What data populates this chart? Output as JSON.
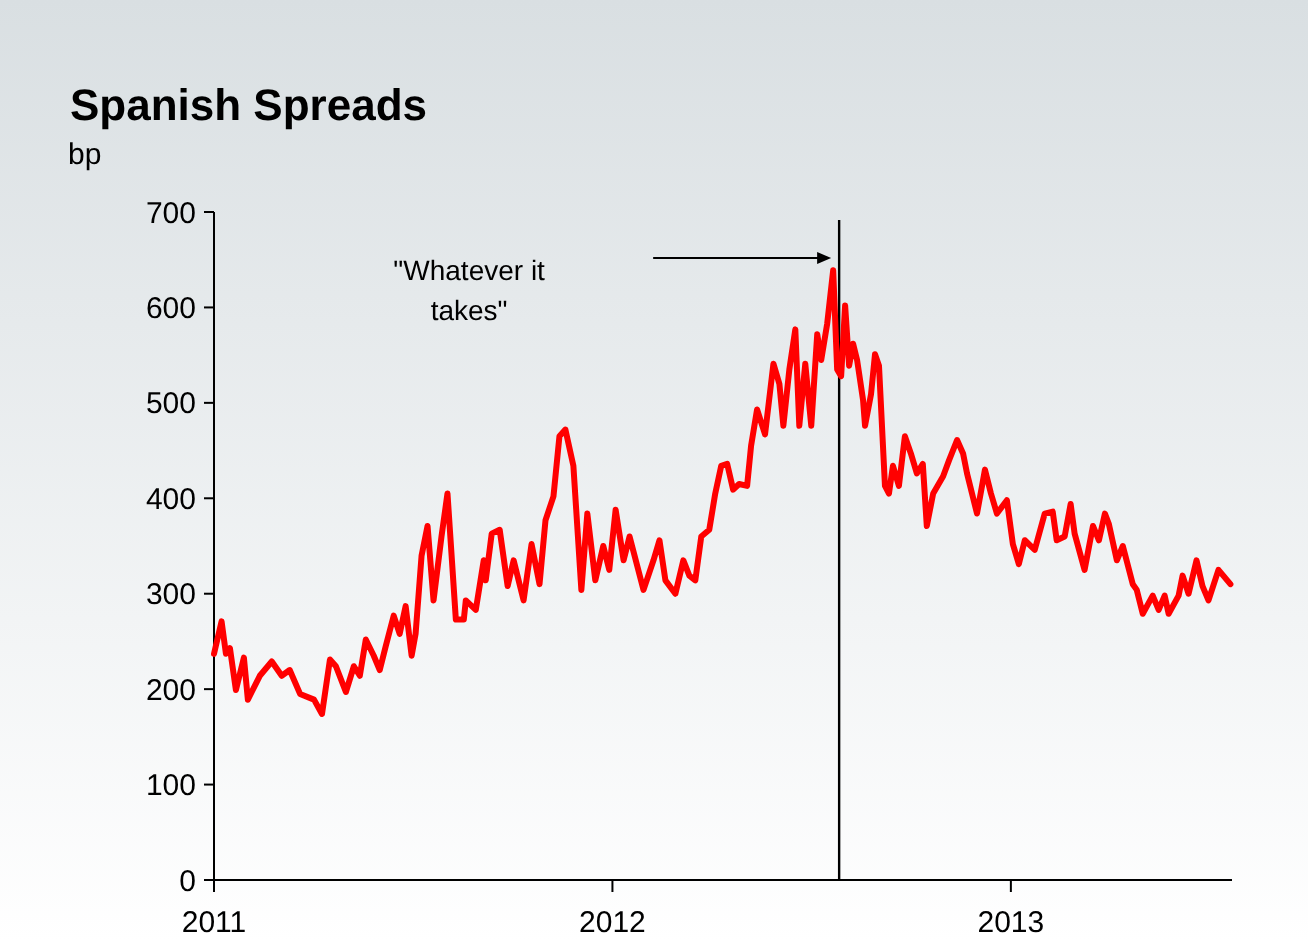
{
  "chart_data": {
    "type": "line",
    "title": "Spanish Spreads",
    "ylabel": "bp",
    "xlim": [
      2011,
      2013.555
    ],
    "xticks": [
      2011,
      2012,
      2013
    ],
    "ylim": [
      0,
      700
    ],
    "yticks": [
      0,
      100,
      200,
      300,
      400,
      500,
      600,
      700
    ],
    "grid": false,
    "line_style": "solid",
    "marker": "none",
    "ref_lines": [
      {
        "axis": "x",
        "value": 2012.569,
        "label": "\"Whatever it takes\"",
        "color": "#000000"
      }
    ],
    "series": [
      {
        "color": "#ff0000",
        "x": [
          2011.0,
          2011.019,
          2011.03,
          2011.04,
          2011.055,
          2011.075,
          2011.085,
          2011.115,
          2011.145,
          2011.17,
          2011.19,
          2011.216,
          2011.251,
          2011.271,
          2011.291,
          2011.306,
          2011.331,
          2011.351,
          2011.366,
          2011.381,
          2011.401,
          2011.416,
          2011.431,
          2011.451,
          2011.466,
          2011.481,
          2011.496,
          2011.506,
          2011.521,
          2011.536,
          2011.551,
          2011.571,
          2011.586,
          2011.607,
          2011.627,
          2011.632,
          2011.657,
          2011.677,
          2011.682,
          2011.697,
          2011.717,
          2011.737,
          2011.752,
          2011.777,
          2011.797,
          2011.817,
          2011.832,
          2011.852,
          2011.867,
          2011.882,
          2011.902,
          2011.922,
          2011.937,
          2011.957,
          2011.977,
          2011.992,
          2012.008,
          2012.028,
          2012.043,
          2012.078,
          2012.103,
          2012.118,
          2012.133,
          2012.158,
          2012.178,
          2012.193,
          2012.208,
          2012.223,
          2012.243,
          2012.258,
          2012.273,
          2012.288,
          2012.303,
          2012.318,
          2012.338,
          2012.348,
          2012.363,
          2012.383,
          2012.404,
          2012.419,
          2012.429,
          2012.444,
          2012.459,
          2012.469,
          2012.484,
          2012.499,
          2012.514,
          2012.524,
          2012.539,
          2012.554,
          2012.564,
          2012.574,
          2012.584,
          2012.594,
          2012.604,
          2012.614,
          2012.629,
          2012.634,
          2012.649,
          2012.659,
          2012.669,
          2012.684,
          2012.694,
          2012.704,
          2012.719,
          2012.734,
          2012.749,
          2012.764,
          2012.779,
          2012.789,
          2012.805,
          2012.83,
          2012.845,
          2012.865,
          2012.88,
          2012.89,
          2012.915,
          2012.935,
          2012.95,
          2012.965,
          2012.99,
          2013.005,
          2013.02,
          2013.035,
          2013.06,
          2013.085,
          2013.105,
          2013.115,
          2013.135,
          2013.15,
          2013.16,
          2013.185,
          2013.206,
          2013.221,
          2013.236,
          2013.246,
          2013.266,
          2013.281,
          2013.306,
          2013.316,
          2013.331,
          2013.356,
          2013.371,
          2013.386,
          2013.396,
          2013.421,
          2013.431,
          2013.446,
          2013.466,
          2013.481,
          2013.496,
          2013.521,
          2013.551
        ],
        "values": [
          237,
          271,
          237,
          243,
          199,
          233,
          189,
          214,
          229,
          214,
          220,
          195,
          189,
          174,
          231,
          224,
          197,
          224,
          214,
          252,
          235,
          220,
          245,
          277,
          258,
          287,
          235,
          258,
          340,
          371,
          293,
          360,
          405,
          273,
          273,
          293,
          283,
          335,
          314,
          363,
          367,
          308,
          335,
          293,
          352,
          310,
          377,
          402,
          465,
          472,
          434,
          304,
          384,
          314,
          350,
          325,
          388,
          335,
          360,
          304,
          335,
          356,
          314,
          300,
          335,
          319,
          314,
          360,
          367,
          405,
          434,
          436,
          409,
          415,
          413,
          455,
          493,
          467,
          541,
          520,
          476,
          535,
          577,
          476,
          541,
          476,
          572,
          545,
          583,
          639,
          535,
          528,
          602,
          539,
          562,
          545,
          503,
          476,
          509,
          551,
          539,
          413,
          405,
          434,
          413,
          465,
          447,
          426,
          436,
          371,
          405,
          423,
          440,
          461,
          447,
          426,
          384,
          430,
          405,
          384,
          398,
          352,
          331,
          356,
          346,
          384,
          386,
          356,
          360,
          394,
          363,
          325,
          371,
          356,
          384,
          373,
          335,
          350,
          310,
          304,
          279,
          298,
          283,
          298,
          279,
          298,
          319,
          300,
          335,
          308,
          293,
          325,
          310
        ]
      }
    ]
  }
}
